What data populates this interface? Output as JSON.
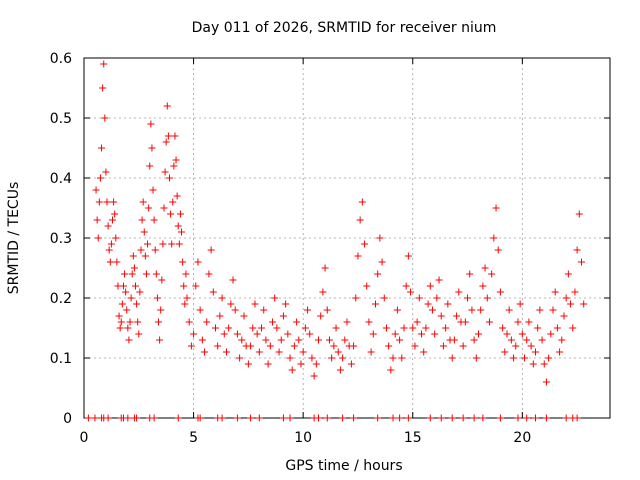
{
  "chart_data": {
    "type": "scatter",
    "title": "Day 011 of 2026, SRMTID for receiver nium",
    "xlabel": "GPS time / hours",
    "ylabel": "SRMTID / TECUs",
    "xlim": [
      0,
      24
    ],
    "ylim": [
      0,
      0.6
    ],
    "xticks": [
      0,
      5,
      10,
      15,
      20
    ],
    "yticks": [
      0,
      0.1,
      0.2,
      0.3,
      0.4,
      0.5,
      0.6
    ],
    "xtick_labels": [
      "0",
      "5",
      "10",
      "15",
      "20"
    ],
    "ytick_labels": [
      "0",
      "0.1",
      "0.2",
      "0.3",
      "0.4",
      "0.5",
      "0.6"
    ],
    "grid": true,
    "marker": "+",
    "color": "#ff0000",
    "series": [
      {
        "name": "SRMTID",
        "points": [
          [
            0.55,
            0.38
          ],
          [
            0.6,
            0.33
          ],
          [
            0.65,
            0.3
          ],
          [
            0.7,
            0.36
          ],
          [
            0.75,
            0.4
          ],
          [
            0.8,
            0.45
          ],
          [
            0.85,
            0.55
          ],
          [
            0.9,
            0.59
          ],
          [
            0.95,
            0.5
          ],
          [
            1.0,
            0.41
          ],
          [
            1.05,
            0.36
          ],
          [
            1.1,
            0.32
          ],
          [
            1.15,
            0.28
          ],
          [
            1.2,
            0.26
          ],
          [
            1.25,
            0.29
          ],
          [
            1.3,
            0.33
          ],
          [
            1.35,
            0.36
          ],
          [
            1.4,
            0.34
          ],
          [
            1.45,
            0.3
          ],
          [
            1.5,
            0.26
          ],
          [
            1.55,
            0.22
          ],
          [
            1.6,
            0.17
          ],
          [
            1.65,
            0.15
          ],
          [
            1.7,
            0.16
          ],
          [
            1.75,
            0.19
          ],
          [
            1.8,
            0.22
          ],
          [
            1.85,
            0.24
          ],
          [
            1.9,
            0.21
          ],
          [
            1.95,
            0.18
          ],
          [
            2.0,
            0.15
          ],
          [
            2.05,
            0.13
          ],
          [
            2.1,
            0.16
          ],
          [
            2.15,
            0.2
          ],
          [
            2.2,
            0.24
          ],
          [
            2.25,
            0.27
          ],
          [
            2.3,
            0.25
          ],
          [
            2.35,
            0.22
          ],
          [
            2.4,
            0.19
          ],
          [
            2.45,
            0.16
          ],
          [
            2.5,
            0.14
          ],
          [
            2.55,
            0.21
          ],
          [
            2.6,
            0.28
          ],
          [
            2.65,
            0.33
          ],
          [
            2.7,
            0.36
          ],
          [
            2.75,
            0.31
          ],
          [
            2.8,
            0.27
          ],
          [
            2.85,
            0.24
          ],
          [
            2.9,
            0.29
          ],
          [
            2.95,
            0.35
          ],
          [
            3.0,
            0.42
          ],
          [
            3.05,
            0.49
          ],
          [
            3.1,
            0.45
          ],
          [
            3.15,
            0.38
          ],
          [
            3.2,
            0.33
          ],
          [
            3.25,
            0.28
          ],
          [
            3.3,
            0.24
          ],
          [
            3.35,
            0.2
          ],
          [
            3.4,
            0.16
          ],
          [
            3.45,
            0.13
          ],
          [
            3.5,
            0.18
          ],
          [
            3.55,
            0.23
          ],
          [
            3.6,
            0.29
          ],
          [
            3.65,
            0.35
          ],
          [
            3.7,
            0.41
          ],
          [
            3.75,
            0.46
          ],
          [
            3.8,
            0.52
          ],
          [
            3.85,
            0.47
          ],
          [
            3.9,
            0.4
          ],
          [
            3.95,
            0.34
          ],
          [
            4.0,
            0.29
          ],
          [
            4.05,
            0.36
          ],
          [
            4.1,
            0.42
          ],
          [
            4.15,
            0.47
          ],
          [
            4.2,
            0.43
          ],
          [
            4.25,
            0.37
          ],
          [
            4.3,
            0.32
          ],
          [
            4.35,
            0.29
          ],
          [
            4.4,
            0.34
          ],
          [
            4.45,
            0.31
          ],
          [
            4.5,
            0.26
          ],
          [
            4.55,
            0.22
          ],
          [
            4.6,
            0.19
          ],
          [
            4.65,
            0.24
          ],
          [
            4.7,
            0.2
          ],
          [
            4.8,
            0.16
          ],
          [
            4.9,
            0.12
          ],
          [
            5.0,
            0.14
          ],
          [
            5.1,
            0.22
          ],
          [
            5.2,
            0.26
          ],
          [
            5.3,
            0.18
          ],
          [
            5.4,
            0.13
          ],
          [
            5.5,
            0.11
          ],
          [
            5.6,
            0.16
          ],
          [
            5.7,
            0.24
          ],
          [
            5.8,
            0.28
          ],
          [
            5.9,
            0.21
          ],
          [
            6.0,
            0.15
          ],
          [
            6.1,
            0.12
          ],
          [
            6.2,
            0.17
          ],
          [
            6.3,
            0.2
          ],
          [
            6.4,
            0.14
          ],
          [
            6.5,
            0.11
          ],
          [
            6.6,
            0.15
          ],
          [
            6.7,
            0.19
          ],
          [
            6.8,
            0.23
          ],
          [
            6.9,
            0.18
          ],
          [
            7.0,
            0.14
          ],
          [
            7.1,
            0.1
          ],
          [
            7.2,
            0.13
          ],
          [
            7.3,
            0.17
          ],
          [
            7.4,
            0.12
          ],
          [
            7.5,
            0.09
          ],
          [
            7.6,
            0.12
          ],
          [
            7.7,
            0.15
          ],
          [
            7.8,
            0.19
          ],
          [
            7.9,
            0.14
          ],
          [
            8.0,
            0.11
          ],
          [
            8.1,
            0.15
          ],
          [
            8.2,
            0.18
          ],
          [
            8.3,
            0.13
          ],
          [
            8.4,
            0.09
          ],
          [
            8.5,
            0.12
          ],
          [
            8.6,
            0.16
          ],
          [
            8.7,
            0.2
          ],
          [
            8.8,
            0.15
          ],
          [
            8.9,
            0.11
          ],
          [
            9.0,
            0.13
          ],
          [
            9.1,
            0.17
          ],
          [
            9.2,
            0.19
          ],
          [
            9.3,
            0.14
          ],
          [
            9.4,
            0.1
          ],
          [
            9.5,
            0.08
          ],
          [
            9.6,
            0.12
          ],
          [
            9.7,
            0.16
          ],
          [
            9.8,
            0.13
          ],
          [
            9.9,
            0.09
          ],
          [
            10.0,
            0.11
          ],
          [
            10.1,
            0.15
          ],
          [
            10.2,
            0.18
          ],
          [
            10.3,
            0.14
          ],
          [
            10.4,
            0.1
          ],
          [
            10.5,
            0.07
          ],
          [
            10.6,
            0.09
          ],
          [
            10.7,
            0.13
          ],
          [
            10.8,
            0.17
          ],
          [
            10.9,
            0.21
          ],
          [
            11.0,
            0.25
          ],
          [
            11.1,
            0.18
          ],
          [
            11.2,
            0.13
          ],
          [
            11.3,
            0.1
          ],
          [
            11.4,
            0.12
          ],
          [
            11.5,
            0.15
          ],
          [
            11.6,
            0.11
          ],
          [
            11.7,
            0.08
          ],
          [
            11.8,
            0.1
          ],
          [
            11.9,
            0.13
          ],
          [
            12.0,
            0.16
          ],
          [
            12.1,
            0.12
          ],
          [
            12.2,
            0.09
          ],
          [
            12.3,
            0.12
          ],
          [
            12.4,
            0.2
          ],
          [
            12.5,
            0.27
          ],
          [
            12.6,
            0.33
          ],
          [
            12.7,
            0.36
          ],
          [
            12.8,
            0.29
          ],
          [
            12.9,
            0.22
          ],
          [
            13.0,
            0.16
          ],
          [
            13.1,
            0.11
          ],
          [
            13.2,
            0.14
          ],
          [
            13.3,
            0.19
          ],
          [
            13.4,
            0.24
          ],
          [
            13.5,
            0.3
          ],
          [
            13.6,
            0.26
          ],
          [
            13.7,
            0.2
          ],
          [
            13.8,
            0.15
          ],
          [
            13.9,
            0.12
          ],
          [
            14.0,
            0.08
          ],
          [
            14.1,
            0.1
          ],
          [
            14.2,
            0.14
          ],
          [
            14.3,
            0.18
          ],
          [
            14.4,
            0.13
          ],
          [
            14.5,
            0.1
          ],
          [
            14.6,
            0.15
          ],
          [
            14.7,
            0.22
          ],
          [
            14.8,
            0.27
          ],
          [
            14.9,
            0.21
          ],
          [
            15.0,
            0.15
          ],
          [
            15.1,
            0.12
          ],
          [
            15.2,
            0.16
          ],
          [
            15.3,
            0.2
          ],
          [
            15.4,
            0.14
          ],
          [
            15.5,
            0.11
          ],
          [
            15.6,
            0.15
          ],
          [
            15.7,
            0.19
          ],
          [
            15.8,
            0.22
          ],
          [
            15.9,
            0.18
          ],
          [
            16.0,
            0.14
          ],
          [
            16.1,
            0.2
          ],
          [
            16.2,
            0.23
          ],
          [
            16.3,
            0.17
          ],
          [
            16.4,
            0.12
          ],
          [
            16.5,
            0.15
          ],
          [
            16.6,
            0.19
          ],
          [
            16.7,
            0.13
          ],
          [
            16.8,
            0.1
          ],
          [
            16.9,
            0.13
          ],
          [
            17.0,
            0.17
          ],
          [
            17.1,
            0.21
          ],
          [
            17.2,
            0.16
          ],
          [
            17.3,
            0.12
          ],
          [
            17.4,
            0.16
          ],
          [
            17.5,
            0.2
          ],
          [
            17.6,
            0.24
          ],
          [
            17.7,
            0.18
          ],
          [
            17.8,
            0.13
          ],
          [
            17.9,
            0.1
          ],
          [
            18.0,
            0.14
          ],
          [
            18.1,
            0.18
          ],
          [
            18.2,
            0.22
          ],
          [
            18.3,
            0.25
          ],
          [
            18.4,
            0.2
          ],
          [
            18.5,
            0.16
          ],
          [
            18.6,
            0.24
          ],
          [
            18.7,
            0.3
          ],
          [
            18.8,
            0.35
          ],
          [
            18.9,
            0.28
          ],
          [
            19.0,
            0.21
          ],
          [
            19.1,
            0.15
          ],
          [
            19.2,
            0.11
          ],
          [
            19.3,
            0.14
          ],
          [
            19.4,
            0.18
          ],
          [
            19.5,
            0.13
          ],
          [
            19.6,
            0.1
          ],
          [
            19.7,
            0.12
          ],
          [
            19.8,
            0.16
          ],
          [
            19.9,
            0.19
          ],
          [
            20.0,
            0.14
          ],
          [
            20.1,
            0.1
          ],
          [
            20.2,
            0.13
          ],
          [
            20.3,
            0.16
          ],
          [
            20.4,
            0.12
          ],
          [
            20.5,
            0.09
          ],
          [
            20.6,
            0.11
          ],
          [
            20.7,
            0.15
          ],
          [
            20.8,
            0.18
          ],
          [
            20.9,
            0.13
          ],
          [
            21.0,
            0.09
          ],
          [
            21.1,
            0.06
          ],
          [
            21.2,
            0.1
          ],
          [
            21.3,
            0.14
          ],
          [
            21.4,
            0.18
          ],
          [
            21.5,
            0.21
          ],
          [
            21.6,
            0.15
          ],
          [
            21.7,
            0.11
          ],
          [
            21.8,
            0.13
          ],
          [
            21.9,
            0.17
          ],
          [
            22.0,
            0.2
          ],
          [
            22.1,
            0.24
          ],
          [
            22.2,
            0.19
          ],
          [
            22.3,
            0.15
          ],
          [
            22.4,
            0.21
          ],
          [
            22.5,
            0.28
          ],
          [
            22.6,
            0.34
          ],
          [
            22.7,
            0.26
          ],
          [
            22.8,
            0.19
          ]
        ]
      }
    ],
    "zero_points_x": [
      0.2,
      0.5,
      0.8,
      0.9,
      1.1,
      1.7,
      1.8,
      2.0,
      2.3,
      2.4,
      3.0,
      3.2,
      4.3,
      5.2,
      5.3,
      6.1,
      6.3,
      7.0,
      7.6,
      8.0,
      9.1,
      9.4,
      10.5,
      10.7,
      11.1,
      11.8,
      12.3,
      13.4,
      14.1,
      14.4,
      14.8,
      15.8,
      16.3,
      16.8,
      17.3,
      17.8,
      18.2,
      19.0,
      19.8,
      20.2,
      20.6,
      21.1,
      22.0,
      22.3,
      22.5
    ]
  }
}
